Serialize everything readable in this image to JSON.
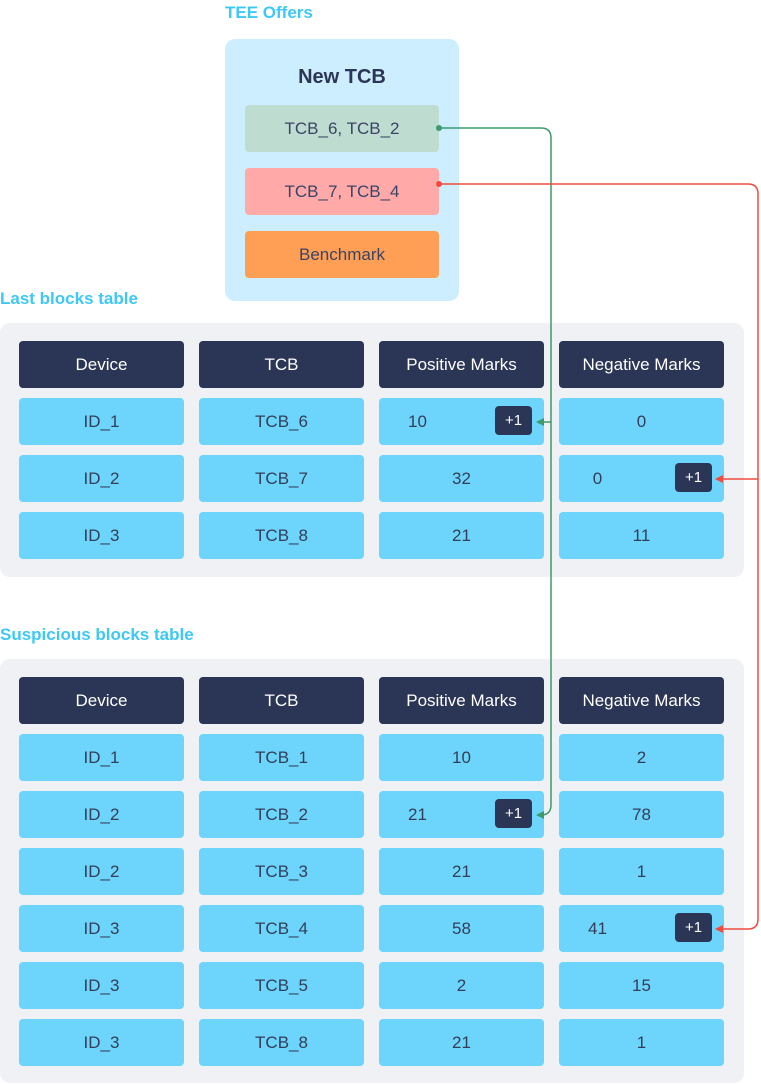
{
  "offers": {
    "section_label": "TEE Offers",
    "panel_title": "New TCB",
    "items": [
      {
        "label": "TCB_6, TCB_2",
        "color": "#bfdcd0"
      },
      {
        "label": "TCB_7, TCB_4",
        "color": "#ffa9a8"
      },
      {
        "label": "Benchmark",
        "color": "#ff9e55"
      }
    ]
  },
  "colors": {
    "accent": "#3ec8f5",
    "header": "#2b3555",
    "cell": "#6dd5fb",
    "green_arrow": "#3d9a6e",
    "red_arrow": "#ef4b3f"
  },
  "last_table": {
    "section_label": "Last blocks table",
    "headers": [
      "Device",
      "TCB",
      "Positive Marks",
      "Negative Marks"
    ],
    "rows": [
      {
        "cells": [
          "ID_1",
          "TCB_6",
          "10",
          "0"
        ],
        "badge_col": 2,
        "badge": "+1"
      },
      {
        "cells": [
          "ID_2",
          "TCB_7",
          "32",
          "0"
        ],
        "badge_col": 3,
        "badge": "+1"
      },
      {
        "cells": [
          "ID_3",
          "TCB_8",
          "21",
          "11"
        ],
        "badge_col": null,
        "badge": null
      }
    ]
  },
  "suspicious_table": {
    "section_label": "Suspicious blocks table",
    "headers": [
      "Device",
      "TCB",
      "Positive Marks",
      "Negative Marks"
    ],
    "rows": [
      {
        "cells": [
          "ID_1",
          "TCB_1",
          "10",
          "2"
        ],
        "badge_col": null,
        "badge": null
      },
      {
        "cells": [
          "ID_2",
          "TCB_2",
          "21",
          "78"
        ],
        "badge_col": 2,
        "badge": "+1"
      },
      {
        "cells": [
          "ID_2",
          "TCB_3",
          "21",
          "1"
        ],
        "badge_col": null,
        "badge": null
      },
      {
        "cells": [
          "ID_3",
          "TCB_4",
          "58",
          "41"
        ],
        "badge_col": 3,
        "badge": "+1"
      },
      {
        "cells": [
          "ID_3",
          "TCB_5",
          "2",
          "15"
        ],
        "badge_col": null,
        "badge": null
      },
      {
        "cells": [
          "ID_3",
          "TCB_8",
          "21",
          "1"
        ],
        "badge_col": null,
        "badge": null
      }
    ]
  }
}
